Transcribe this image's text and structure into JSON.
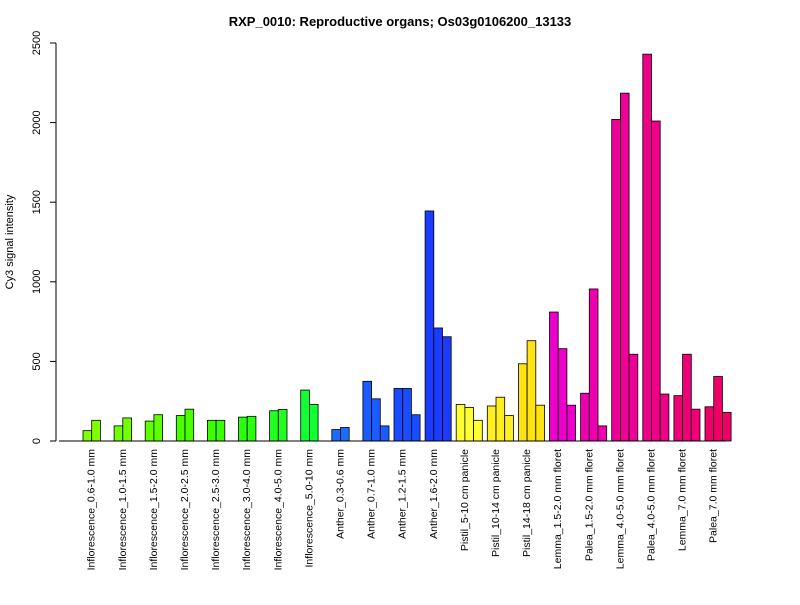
{
  "chart_data": {
    "type": "bar",
    "title": "RXP_0010: Reproductive organs; Os03g0106200_13133",
    "ylabel": "Cy3 signal intensity",
    "xlabel": "",
    "ylim": [
      0,
      2500
    ],
    "yticks": [
      0,
      500,
      1000,
      1500,
      2000,
      2500
    ],
    "grid": false,
    "groups": [
      {
        "label": "Inflorescence_0.6-1.0 mm",
        "color": "#7fff00",
        "values": [
          65,
          130
        ]
      },
      {
        "label": "Inflorescence_1.0-1.5 mm",
        "color": "#72ff00",
        "values": [
          95,
          145
        ]
      },
      {
        "label": "Inflorescence_1.5-2.0 mm",
        "color": "#5fff00",
        "values": [
          125,
          165
        ]
      },
      {
        "label": "Inflorescence_2.0-2.5 mm",
        "color": "#4cff00",
        "values": [
          160,
          200
        ]
      },
      {
        "label": "Inflorescence_2.5-3.0 mm",
        "color": "#3bff00",
        "values": [
          130,
          130
        ]
      },
      {
        "label": "Inflorescence_3.0-4.0 mm",
        "color": "#2aff10",
        "values": [
          150,
          155
        ]
      },
      {
        "label": "Inflorescence_4.0-5.0 mm",
        "color": "#22ff22",
        "values": [
          190,
          198
        ]
      },
      {
        "label": "Inflorescence_5.0-10 mm",
        "color": "#11ff33",
        "values": [
          320,
          230
        ]
      },
      {
        "label": "Anther_0.3-0.6 mm",
        "color": "#1a6cff",
        "values": [
          72,
          85
        ]
      },
      {
        "label": "Anther_0.7-1.0 mm",
        "color": "#1a5cff",
        "values": [
          375,
          265,
          95
        ]
      },
      {
        "label": "Anther_1.2-1.5 mm",
        "color": "#1a4cff",
        "values": [
          330,
          330,
          165
        ]
      },
      {
        "label": "Anther_1.6-2.0 mm",
        "color": "#1a3cff",
        "values": [
          1445,
          710,
          655
        ]
      },
      {
        "label": "Pistil_5-10 cm panicle",
        "color": "#ffff33",
        "values": [
          230,
          210,
          130
        ]
      },
      {
        "label": "Pistil_10-14 cm panicle",
        "color": "#ffee22",
        "values": [
          220,
          275,
          160
        ]
      },
      {
        "label": "Pistil_14-18 cm panicle",
        "color": "#ffe211",
        "values": [
          485,
          630,
          225
        ]
      },
      {
        "label": "Lemma_1.5-2.0 mm floret",
        "color": "#ee00cc",
        "values": [
          810,
          580,
          225
        ]
      },
      {
        "label": "Palea_1.5-2.0 mm floret",
        "color": "#ee00b0",
        "values": [
          300,
          955,
          95
        ]
      },
      {
        "label": "Lemma_4.0-5.0 mm floret",
        "color": "#ee0099",
        "values": [
          2020,
          2185,
          545
        ]
      },
      {
        "label": "Palea_4.0-5.0 mm floret",
        "color": "#ee0088",
        "values": [
          2430,
          2010,
          295
        ]
      },
      {
        "label": "Lemma_7.0 mm floret",
        "color": "#ee0077",
        "values": [
          285,
          545,
          200
        ]
      },
      {
        "label": "Palea_7.0 mm floret",
        "color": "#ee0066",
        "values": [
          215,
          405,
          180
        ]
      }
    ]
  }
}
